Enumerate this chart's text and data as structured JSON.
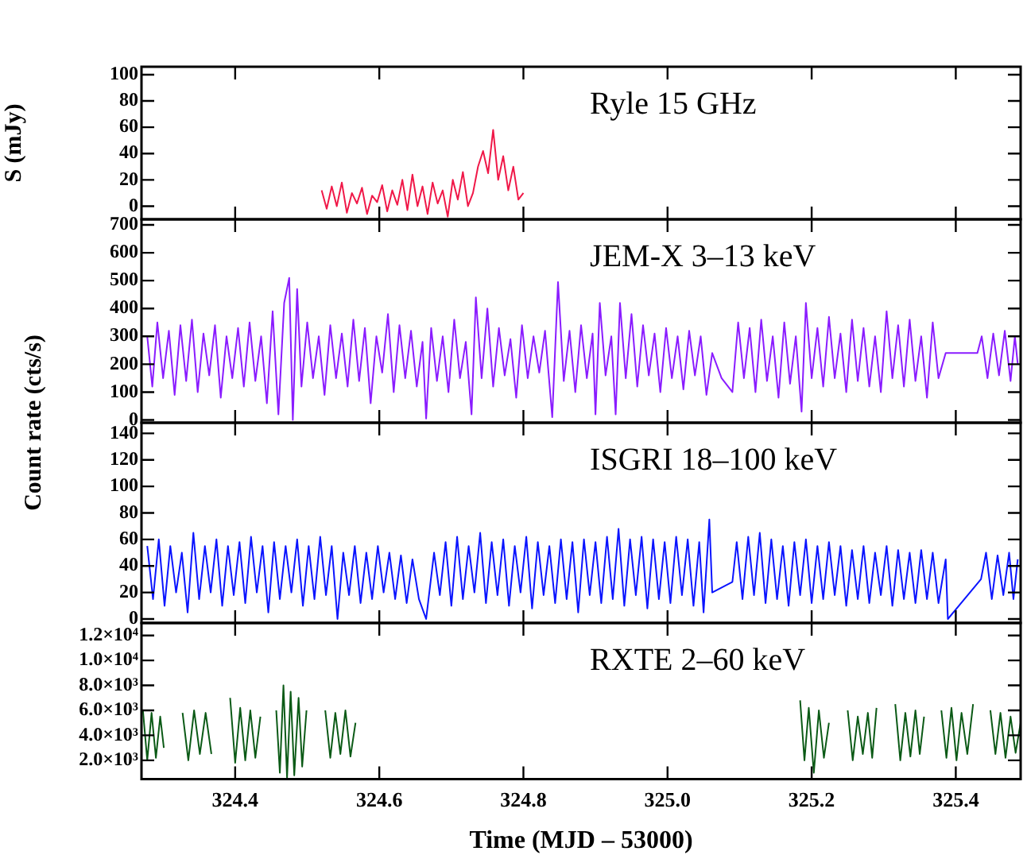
{
  "chart_data": [
    {
      "type": "line",
      "ylabel": "S (mJy)",
      "annotations": [
        "Ryle 15 GHz"
      ],
      "color": "#f01848",
      "marker": "none",
      "grid": false,
      "legend": false,
      "tick_labels": "y",
      "xlim": [
        324.27,
        325.49
      ],
      "xticks": [
        324.4,
        324.6,
        324.8,
        325,
        325.2,
        325.4
      ],
      "ylim": [
        -10,
        106
      ],
      "yticks": [
        0,
        20,
        40,
        60,
        80,
        100
      ],
      "x": [
        324.52,
        324.527,
        324.534,
        324.541,
        324.548,
        324.555,
        324.562,
        324.569,
        324.576,
        324.583,
        324.59,
        324.597,
        324.604,
        324.611,
        324.618,
        324.625,
        324.632,
        324.639,
        324.646,
        324.653,
        324.66,
        324.667,
        324.674,
        324.681,
        324.688,
        324.695,
        324.702,
        324.709,
        324.716,
        324.723,
        324.73,
        324.737,
        324.744,
        324.751,
        324.758,
        324.765,
        324.772,
        324.779,
        324.786,
        324.793,
        324.8
      ],
      "values": [
        12,
        -2,
        15,
        0,
        18,
        -5,
        10,
        2,
        14,
        -6,
        8,
        3,
        16,
        -4,
        12,
        1,
        20,
        -3,
        24,
        0,
        15,
        -6,
        18,
        2,
        12,
        -8,
        20,
        5,
        26,
        0,
        10,
        30,
        42,
        25,
        58,
        20,
        38,
        12,
        30,
        5,
        10
      ]
    },
    {
      "type": "line",
      "ylabel": "Count rate (cts/s)",
      "annotations": [
        "JEM-X 3–13 keV"
      ],
      "color": "#8a1cff",
      "marker": "none",
      "grid": false,
      "legend": false,
      "tick_labels": "y",
      "xlim": [
        324.27,
        325.49
      ],
      "xticks": [
        324.4,
        324.6,
        324.8,
        325,
        325.2,
        325.4
      ],
      "ylim": [
        -10,
        720
      ],
      "yticks": [
        0,
        100,
        200,
        300,
        400,
        500,
        600,
        700
      ],
      "x": [
        324.278,
        324.285,
        324.292,
        324.3,
        324.308,
        324.316,
        324.324,
        324.332,
        324.34,
        324.348,
        324.356,
        324.364,
        324.372,
        324.38,
        324.388,
        324.396,
        324.404,
        324.412,
        324.42,
        324.428,
        324.436,
        324.444,
        324.452,
        324.46,
        324.468,
        324.475,
        324.48,
        324.486,
        324.492,
        324.5,
        324.508,
        324.516,
        324.524,
        324.532,
        324.54,
        324.548,
        324.556,
        324.564,
        324.572,
        324.58,
        324.588,
        324.596,
        324.604,
        324.612,
        324.62,
        324.628,
        324.636,
        324.644,
        324.652,
        324.66,
        324.665,
        324.672,
        324.68,
        324.688,
        324.696,
        324.704,
        324.712,
        324.72,
        324.728,
        324.734,
        324.742,
        324.75,
        324.758,
        324.766,
        324.774,
        324.782,
        324.79,
        324.798,
        324.806,
        324.814,
        324.822,
        324.83,
        324.84,
        324.848,
        324.856,
        324.864,
        324.872,
        324.88,
        324.888,
        324.896,
        324.9,
        324.906,
        324.914,
        324.922,
        324.928,
        324.934,
        324.942,
        324.95,
        324.958,
        324.966,
        324.974,
        324.982,
        324.99,
        324.998,
        325.006,
        325.014,
        325.022,
        325.03,
        325.038,
        325.046,
        325.054,
        325.062,
        325.075,
        325.09,
        325.098,
        325.106,
        325.114,
        325.122,
        325.13,
        325.138,
        325.146,
        325.154,
        325.162,
        325.17,
        325.178,
        325.186,
        325.192,
        325.2,
        325.208,
        325.216,
        325.224,
        325.232,
        325.24,
        325.248,
        325.256,
        325.264,
        325.272,
        325.28,
        325.288,
        325.296,
        325.304,
        325.312,
        325.32,
        325.328,
        325.336,
        325.344,
        325.352,
        325.36,
        325.368,
        325.376,
        325.386,
        325.43,
        325.436,
        325.444,
        325.452,
        325.46,
        325.468,
        325.476,
        325.482,
        325.486
      ],
      "values": [
        300,
        120,
        350,
        150,
        320,
        90,
        340,
        140,
        360,
        100,
        310,
        160,
        340,
        80,
        300,
        150,
        330,
        120,
        350,
        140,
        300,
        60,
        390,
        20,
        420,
        510,
        0,
        470,
        120,
        350,
        150,
        300,
        90,
        340,
        150,
        310,
        120,
        360,
        140,
        330,
        60,
        300,
        170,
        380,
        100,
        340,
        150,
        320,
        120,
        280,
        5,
        330,
        140,
        300,
        100,
        360,
        150,
        280,
        20,
        440,
        150,
        400,
        120,
        330,
        160,
        290,
        80,
        340,
        150,
        300,
        170,
        320,
        10,
        495,
        140,
        320,
        100,
        340,
        150,
        310,
        20,
        420,
        160,
        300,
        20,
        420,
        150,
        380,
        120,
        340,
        160,
        310,
        100,
        330,
        150,
        300,
        110,
        320,
        160,
        300,
        90,
        240,
        150,
        100,
        350,
        150,
        330,
        100,
        360,
        140,
        300,
        80,
        350,
        130,
        300,
        30,
        420,
        150,
        330,
        120,
        370,
        150,
        310,
        100,
        360,
        140,
        330,
        120,
        300,
        100,
        390,
        150,
        340,
        120,
        360,
        140,
        300,
        80,
        350,
        150,
        240,
        240,
        300,
        150,
        310,
        160,
        320,
        140,
        300,
        200
      ]
    },
    {
      "type": "line",
      "annotations": [
        "ISGRI 18–100 keV"
      ],
      "color": "#0a14ff",
      "marker": "none",
      "grid": false,
      "legend": false,
      "tick_labels": "y",
      "xlim": [
        324.27,
        325.49
      ],
      "xticks": [
        324.4,
        324.6,
        324.8,
        325,
        325.2,
        325.4
      ],
      "ylim": [
        -3,
        148
      ],
      "yticks": [
        0,
        20,
        40,
        60,
        80,
        100,
        120,
        140
      ],
      "x": [
        324.278,
        324.286,
        324.294,
        324.302,
        324.31,
        324.318,
        324.326,
        324.334,
        324.342,
        324.35,
        324.358,
        324.366,
        324.374,
        324.382,
        324.39,
        324.398,
        324.406,
        324.414,
        324.422,
        324.43,
        324.438,
        324.446,
        324.454,
        324.462,
        324.47,
        324.478,
        324.486,
        324.494,
        324.502,
        324.51,
        324.518,
        324.526,
        324.534,
        324.542,
        324.55,
        324.558,
        324.566,
        324.574,
        324.582,
        324.59,
        324.598,
        324.606,
        324.614,
        324.622,
        324.63,
        324.638,
        324.646,
        324.655,
        324.665,
        324.676,
        324.684,
        324.692,
        324.7,
        324.708,
        324.716,
        324.724,
        324.732,
        324.74,
        324.748,
        324.756,
        324.764,
        324.772,
        324.78,
        324.788,
        324.796,
        324.804,
        324.812,
        324.82,
        324.828,
        324.836,
        324.844,
        324.852,
        324.86,
        324.868,
        324.876,
        324.884,
        324.892,
        324.9,
        324.908,
        324.916,
        324.924,
        324.932,
        324.94,
        324.948,
        324.956,
        324.964,
        324.972,
        324.98,
        324.988,
        324.996,
        325.004,
        325.012,
        325.02,
        325.028,
        325.036,
        325.044,
        325.05,
        325.058,
        325.062,
        325.09,
        325.096,
        325.104,
        325.112,
        325.12,
        325.128,
        325.136,
        325.144,
        325.152,
        325.16,
        325.168,
        325.176,
        325.184,
        325.192,
        325.2,
        325.208,
        325.216,
        325.224,
        325.232,
        325.24,
        325.248,
        325.256,
        325.264,
        325.272,
        325.28,
        325.288,
        325.296,
        325.304,
        325.312,
        325.32,
        325.328,
        325.336,
        325.344,
        325.352,
        325.36,
        325.368,
        325.376,
        325.386,
        325.389,
        325.435,
        325.442,
        325.45,
        325.458,
        325.466,
        325.474,
        325.48,
        325.486
      ],
      "values": [
        55,
        15,
        60,
        10,
        55,
        20,
        50,
        5,
        65,
        15,
        55,
        20,
        60,
        10,
        55,
        18,
        58,
        12,
        62,
        20,
        55,
        5,
        58,
        15,
        55,
        20,
        60,
        10,
        55,
        15,
        62,
        18,
        55,
        0,
        50,
        18,
        55,
        12,
        50,
        15,
        55,
        20,
        50,
        15,
        48,
        12,
        45,
        15,
        0,
        50,
        18,
        58,
        10,
        62,
        15,
        55,
        20,
        65,
        12,
        58,
        18,
        60,
        10,
        55,
        20,
        62,
        8,
        58,
        18,
        55,
        12,
        60,
        15,
        58,
        5,
        60,
        18,
        58,
        12,
        62,
        15,
        68,
        10,
        60,
        18,
        62,
        8,
        60,
        15,
        58,
        12,
        62,
        18,
        60,
        10,
        58,
        5,
        75,
        20,
        28,
        58,
        15,
        62,
        18,
        65,
        12,
        60,
        15,
        55,
        10,
        58,
        18,
        60,
        12,
        55,
        15,
        58,
        18,
        55,
        10,
        52,
        15,
        55,
        12,
        50,
        18,
        55,
        10,
        52,
        15,
        50,
        12,
        52,
        15,
        50,
        12,
        45,
        0,
        30,
        50,
        15,
        48,
        18,
        50,
        15,
        45
      ]
    },
    {
      "type": "line",
      "xlabel": "Time (MJD – 53000)",
      "annotations": [
        "RXTE 2–60 keV"
      ],
      "color": "#0b5a16",
      "marker": "none",
      "grid": false,
      "legend": false,
      "xlim": [
        324.27,
        325.49
      ],
      "xticks": [
        324.4,
        324.6,
        324.8,
        {
          "value": 325,
          "label": "325.0"
        },
        325.2,
        325.4
      ],
      "ylim": [
        500,
        13000
      ],
      "yticks": [
        {
          "value": 2000,
          "label": "2.0×10³"
        },
        {
          "value": 4000,
          "label": "4.0×10³"
        },
        {
          "value": 6000,
          "label": "6.0×10³"
        },
        {
          "value": 8000,
          "label": "8.0×10³"
        },
        {
          "value": 10000,
          "label": "1.0×10⁴"
        },
        {
          "value": 12000,
          "label": "1.2×10⁴"
        }
      ],
      "x": [
        324.272,
        324.278,
        324.284,
        324.29,
        324.296,
        324.301,
        324.314,
        324.327,
        324.335,
        324.343,
        324.351,
        324.359,
        324.367,
        324.38,
        324.393,
        324.4,
        324.407,
        324.414,
        324.421,
        324.428,
        324.435,
        324.446,
        324.457,
        324.462,
        324.467,
        324.472,
        324.477,
        324.482,
        324.488,
        324.493,
        324.499,
        324.512,
        324.525,
        324.532,
        324.539,
        324.546,
        324.553,
        324.56,
        324.567,
        324.9,
        325.184,
        325.19,
        325.196,
        325.203,
        325.21,
        325.217,
        325.224,
        325.237,
        325.25,
        325.257,
        325.264,
        325.271,
        325.278,
        325.284,
        325.29,
        325.303,
        325.316,
        325.323,
        325.33,
        325.337,
        325.344,
        325.35,
        325.356,
        325.368,
        325.38,
        325.387,
        325.394,
        325.401,
        325.408,
        325.416,
        325.424,
        325.436,
        325.448,
        325.455,
        325.462,
        325.469,
        325.476,
        325.483,
        325.49
      ],
      "values": [
        6000,
        2000,
        5800,
        2200,
        5500,
        3000,
        null,
        5800,
        2000,
        6000,
        2500,
        5800,
        2500,
        null,
        7000,
        1800,
        6200,
        2000,
        6000,
        2200,
        5500,
        null,
        6000,
        1000,
        8000,
        600,
        7500,
        800,
        7000,
        1500,
        6000,
        null,
        6000,
        2200,
        5800,
        2500,
        6000,
        2300,
        5000,
        null,
        6800,
        2000,
        6200,
        1000,
        6000,
        2200,
        5000,
        null,
        6000,
        2000,
        5500,
        2500,
        5800,
        2200,
        6200,
        null,
        6500,
        2000,
        5800,
        2300,
        6000,
        2500,
        5500,
        null,
        6000,
        2200,
        6200,
        2000,
        5800,
        2500,
        6500,
        null,
        6000,
        2500,
        5800,
        2200,
        5500,
        2600,
        5000
      ]
    }
  ]
}
